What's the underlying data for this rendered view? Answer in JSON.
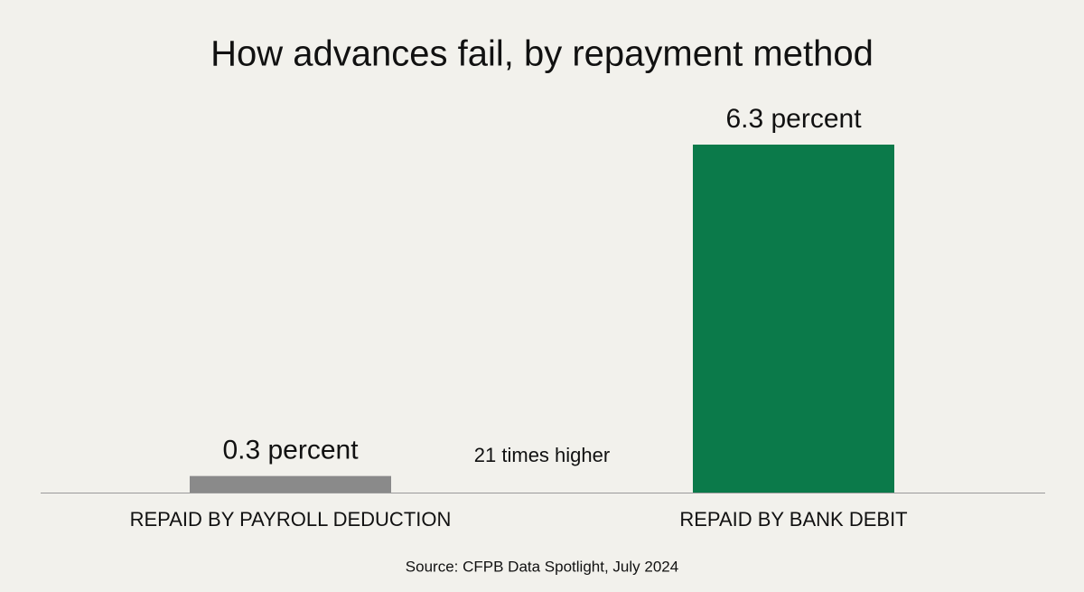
{
  "chart_data": {
    "type": "bar",
    "title": "How advances fail, by repayment method",
    "categories": [
      "REPAID BY PAYROLL DEDUCTION",
      "REPAID BY BANK DEBIT"
    ],
    "values": [
      0.3,
      6.3
    ],
    "value_labels": [
      "0.3 percent",
      "6.3 percent"
    ],
    "colors": [
      "#8a8a8a",
      "#0b7a4a"
    ],
    "annotation": "21 times higher",
    "source": "Source: CFPB Data Spotlight, July 2024"
  }
}
